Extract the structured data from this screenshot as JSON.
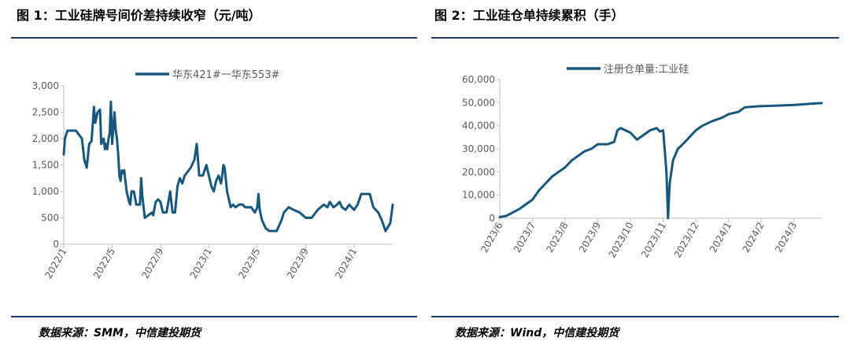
{
  "figures": [
    {
      "title": "图 1：工业硅牌号间价差持续收窄（元/吨）",
      "source": "数据来源：SMM，中信建投期货"
    },
    {
      "title": "图 2：工业硅仓单持续累积（手）",
      "source": "数据来源：Wind，中信建投期货"
    }
  ],
  "colors": {
    "series": "#17577e",
    "rule": "#1a3f6a",
    "axis": "#bfbfbf",
    "text": "#595959"
  },
  "chart_data": [
    {
      "type": "line",
      "title": "工业硅牌号间价差持续收窄（元/吨）",
      "xlabel": "",
      "ylabel": "元/吨",
      "ylim": [
        0,
        3000
      ],
      "y_ticks": [
        0,
        500,
        1000,
        1500,
        2000,
        2500,
        3000
      ],
      "y_tick_labels": [
        "0",
        "500",
        "1,000",
        "1,500",
        "2,000",
        "2,500",
        "3,000"
      ],
      "x_tick_labels": [
        "2022/1",
        "2022/5",
        "2022/9",
        "2023/1",
        "2023/5",
        "2023/9",
        "2024/1"
      ],
      "x_tick_months": [
        0,
        4,
        8,
        12,
        16,
        20,
        24
      ],
      "xlim_months": [
        0,
        27.2
      ],
      "legend": "华东421#一华东553#",
      "series": [
        {
          "name": "华东421#一华东553#",
          "x_months": [
            0,
            0.1,
            0.3,
            0.5,
            1.0,
            1.5,
            1.7,
            1.9,
            2.1,
            2.3,
            2.5,
            2.6,
            2.8,
            3.0,
            3.1,
            3.3,
            3.4,
            3.5,
            3.6,
            3.7,
            3.8,
            3.9,
            4.0,
            4.2,
            4.3,
            4.4,
            4.5,
            4.6,
            4.7,
            4.8,
            4.9,
            5.0,
            5.2,
            5.4,
            5.5,
            5.6,
            5.8,
            6.0,
            6.3,
            6.4,
            6.5,
            6.7,
            7.0,
            7.3,
            7.4,
            7.6,
            7.8,
            8.0,
            8.2,
            8.5,
            8.8,
            9.0,
            9.2,
            9.4,
            9.6,
            9.8,
            10.0,
            10.5,
            10.8,
            11.0,
            11.2,
            11.5,
            11.8,
            12.0,
            12.2,
            12.4,
            12.6,
            12.8,
            13.0,
            13.1,
            13.2,
            13.3,
            13.5,
            13.8,
            14.0,
            14.2,
            14.5,
            14.8,
            15.0,
            15.2,
            15.5,
            15.8,
            16.0,
            16.1,
            16.2,
            16.4,
            16.7,
            17.0,
            17.3,
            17.6,
            18.0,
            18.2,
            18.6,
            19.0,
            19.5,
            20.0,
            20.5,
            21.0,
            21.5,
            21.8,
            22.0,
            22.3,
            22.6,
            22.8,
            23.0,
            23.3,
            23.6,
            24.0,
            24.3,
            24.6,
            25.0,
            25.3,
            25.6,
            26.0,
            26.3,
            26.6,
            27.0,
            27.2
          ],
          "values": [
            1700,
            2000,
            2150,
            2150,
            2150,
            2000,
            1600,
            1450,
            1900,
            1950,
            2600,
            2300,
            2500,
            2550,
            1900,
            2000,
            1800,
            1900,
            1800,
            2000,
            2100,
            2700,
            1900,
            2500,
            2150,
            2000,
            1700,
            1300,
            1200,
            1400,
            1350,
            1400,
            1000,
            800,
            750,
            1000,
            1000,
            750,
            750,
            1250,
            900,
            500,
            550,
            600,
            550,
            800,
            850,
            800,
            600,
            600,
            1000,
            600,
            600,
            1100,
            1250,
            1150,
            1300,
            1450,
            1600,
            1900,
            1300,
            1300,
            1500,
            1300,
            1100,
            1000,
            1200,
            1300,
            1150,
            1300,
            1500,
            1450,
            1000,
            700,
            750,
            700,
            750,
            750,
            700,
            700,
            700,
            600,
            700,
            950,
            650,
            450,
            300,
            250,
            250,
            250,
            450,
            600,
            700,
            650,
            600,
            500,
            500,
            650,
            750,
            700,
            800,
            700,
            750,
            800,
            700,
            650,
            750,
            650,
            750,
            950,
            950,
            950,
            700,
            600,
            450,
            250,
            400,
            750
          ]
        }
      ]
    },
    {
      "type": "line",
      "title": "工业硅仓单持续累积（手）",
      "xlabel": "",
      "ylabel": "手",
      "ylim": [
        0,
        60000
      ],
      "y_ticks": [
        0,
        10000,
        20000,
        30000,
        40000,
        50000,
        60000
      ],
      "y_tick_labels": [
        "0",
        "10,000",
        "20,000",
        "30,000",
        "40,000",
        "50,000",
        "60,000"
      ],
      "x_tick_labels": [
        "2023/6",
        "2023/7",
        "2023/8",
        "2023/9",
        "2023/10",
        "2023/11",
        "2023/12",
        "2024/1",
        "2024/2",
        "2024/3"
      ],
      "x_tick_months": [
        0,
        1,
        2,
        3,
        4,
        5,
        6,
        7,
        8,
        9
      ],
      "xlim_months": [
        0,
        9.85
      ],
      "legend": "注册仓单量:工业硅",
      "series": [
        {
          "name": "注册仓单量:工业硅",
          "x_months": [
            0,
            0.2,
            0.4,
            0.6,
            0.8,
            1.0,
            1.2,
            1.4,
            1.6,
            1.8,
            2.0,
            2.2,
            2.4,
            2.6,
            2.8,
            3.0,
            3.3,
            3.5,
            3.6,
            3.7,
            4.0,
            4.2,
            4.4,
            4.6,
            4.8,
            4.9,
            5.0,
            5.1,
            5.15,
            5.2,
            5.3,
            5.45,
            5.6,
            5.8,
            6.0,
            6.2,
            6.5,
            6.8,
            7.0,
            7.3,
            7.5,
            7.8,
            8.0,
            8.5,
            9.0,
            9.5,
            9.85
          ],
          "values": [
            500,
            1000,
            2500,
            4000,
            6000,
            8000,
            12000,
            15000,
            18000,
            20000,
            22000,
            25000,
            27000,
            29000,
            30000,
            32000,
            32000,
            33000,
            38000,
            39000,
            37000,
            34000,
            36000,
            38000,
            39000,
            37500,
            38000,
            20000,
            0,
            15000,
            25000,
            30000,
            32000,
            35000,
            38000,
            40000,
            42000,
            43500,
            45000,
            46000,
            48000,
            48300,
            48500,
            48700,
            49000,
            49500,
            49800
          ]
        }
      ]
    }
  ]
}
